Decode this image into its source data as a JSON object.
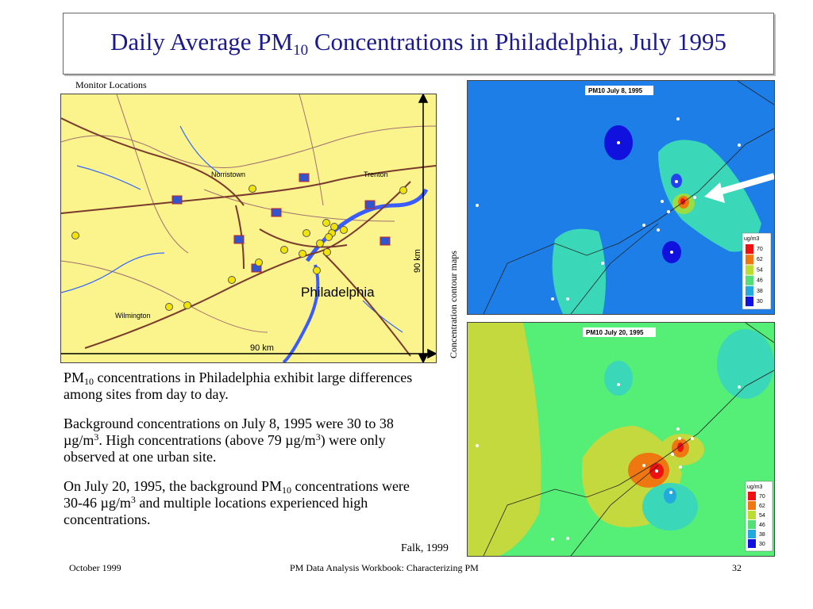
{
  "title": {
    "main": "Daily Average PM",
    "sub": "10",
    "rest": " Concentrations in Philadelphia, July 1995"
  },
  "map": {
    "caption": "Monitor Locations",
    "cities": [
      "Norristown",
      "Trenton",
      "Philadelphia",
      "Wilmington"
    ],
    "scale_h": "90 km",
    "scale_v": "90 km"
  },
  "side_label": "Concentration contour maps",
  "contour_maps": [
    {
      "title": "PM10 July 8, 1995",
      "legend_unit": "ug/m3",
      "legend": [
        "70",
        "62",
        "54",
        "46",
        "38",
        "30"
      ]
    },
    {
      "title": "PM10 July 20, 1995",
      "legend_unit": "ug/m3",
      "legend": [
        "70",
        "62",
        "54",
        "46",
        "38",
        "30"
      ]
    }
  ],
  "legend_colors": [
    "#ee1111",
    "#ee7711",
    "#bbdd33",
    "#55dd77",
    "#22aadd",
    "#1111dd"
  ],
  "paragraphs": {
    "p1_a": "PM",
    "p1_sub": "10",
    "p1_b": " concentrations in Philadelphia exhibit large differences among sites from day to day.",
    "p2_a": "Background concentrations on July 8, 1995 were 30  to 38 µg/m",
    "p2_sup1": "3",
    "p2_b": ".  High concentrations (above  79 µg/m",
    "p2_sup2": "3",
    "p2_c": ") were only observed at one urban site.",
    "p3_a": "On July 20, 1995, the background PM",
    "p3_sub": "10",
    "p3_b": " concentrations were 30-46 µg/m",
    "p3_sup": "3",
    "p3_c": " and multiple locations experienced high concentrations."
  },
  "credit": "Falk, 1999",
  "footer": {
    "left": "October 1999",
    "center": "PM Data Analysis Workbook: Characterizing PM",
    "right": "32"
  }
}
